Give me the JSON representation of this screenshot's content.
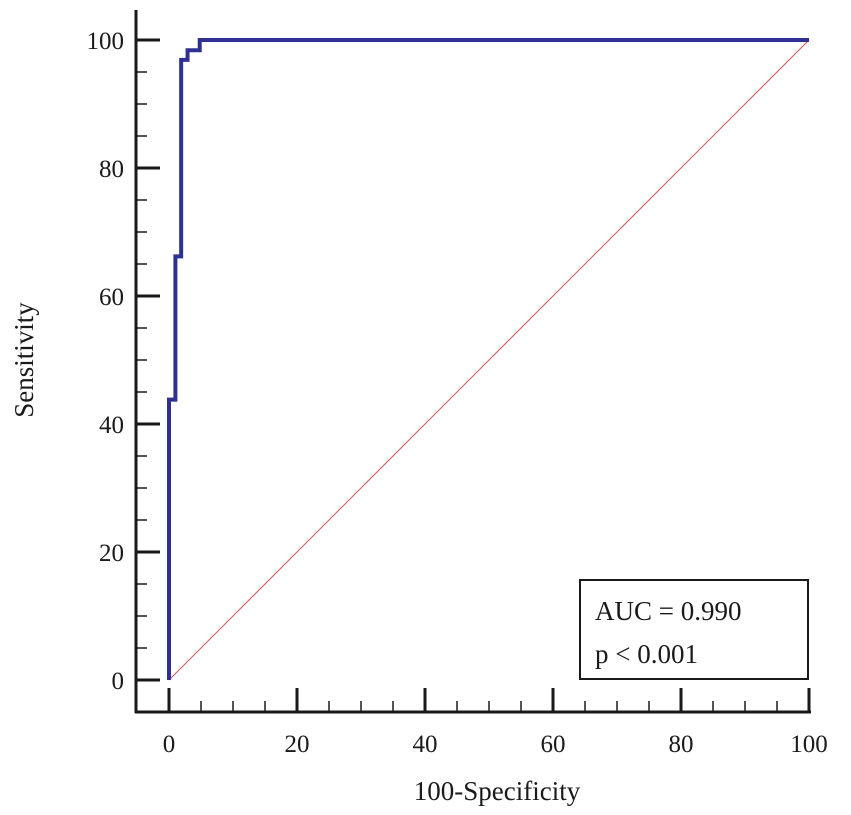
{
  "chart_data": {
    "type": "line",
    "xlabel": "100-Specificity",
    "ylabel": "Sensitivity",
    "xlim": [
      0,
      100
    ],
    "ylim": [
      0,
      100
    ],
    "xticks": [
      0,
      20,
      40,
      60,
      80,
      100
    ],
    "yticks": [
      0,
      20,
      40,
      60,
      80,
      100
    ],
    "x_minor_step": 5,
    "y_minor_step": 5,
    "grid": false,
    "series": [
      {
        "color": "#2e3192",
        "style": "step",
        "points": [
          [
            0,
            0
          ],
          [
            0,
            43.8
          ],
          [
            1.0,
            43.8
          ],
          [
            1.0,
            66.2
          ],
          [
            1.9,
            66.2
          ],
          [
            1.9,
            96.9
          ],
          [
            2.9,
            96.9
          ],
          [
            2.9,
            98.4
          ],
          [
            4.8,
            98.4
          ],
          [
            4.8,
            100
          ],
          [
            100,
            100
          ]
        ]
      },
      {
        "color": "#d9534f",
        "style": "diagonal-reference",
        "points": [
          [
            0,
            0
          ],
          [
            100,
            100
          ]
        ]
      }
    ],
    "annotation": {
      "lines": [
        "AUC = 0.990",
        "p < 0.001"
      ],
      "position": "bottom-right"
    }
  }
}
